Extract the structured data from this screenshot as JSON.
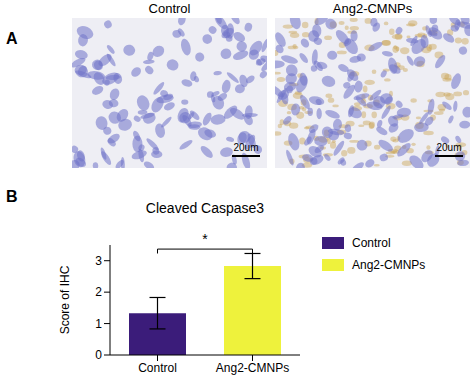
{
  "figure": {
    "panel_labels": [
      "A",
      "B"
    ],
    "images": [
      {
        "title": "Control",
        "scale_bar": "20um"
      },
      {
        "title": "Ang2-CMNPs",
        "scale_bar": "20um"
      }
    ]
  },
  "chart_data": {
    "type": "bar",
    "title": "Cleaved Caspase3",
    "y_label": "Score of IHC",
    "categories": [
      "Control",
      "Ang2-CMNPs"
    ],
    "values": [
      1.33,
      2.83
    ],
    "errors": [
      0.5,
      0.4
    ],
    "colors": [
      "#3b1c7a",
      "#eef23c"
    ],
    "ylim": [
      0,
      3.5
    ],
    "yticks": [
      0,
      1,
      2,
      3
    ],
    "legend": "upper right",
    "annotations": [
      {
        "from": "Control",
        "to": "Ang2-CMNPs",
        "label": "*"
      }
    ]
  }
}
